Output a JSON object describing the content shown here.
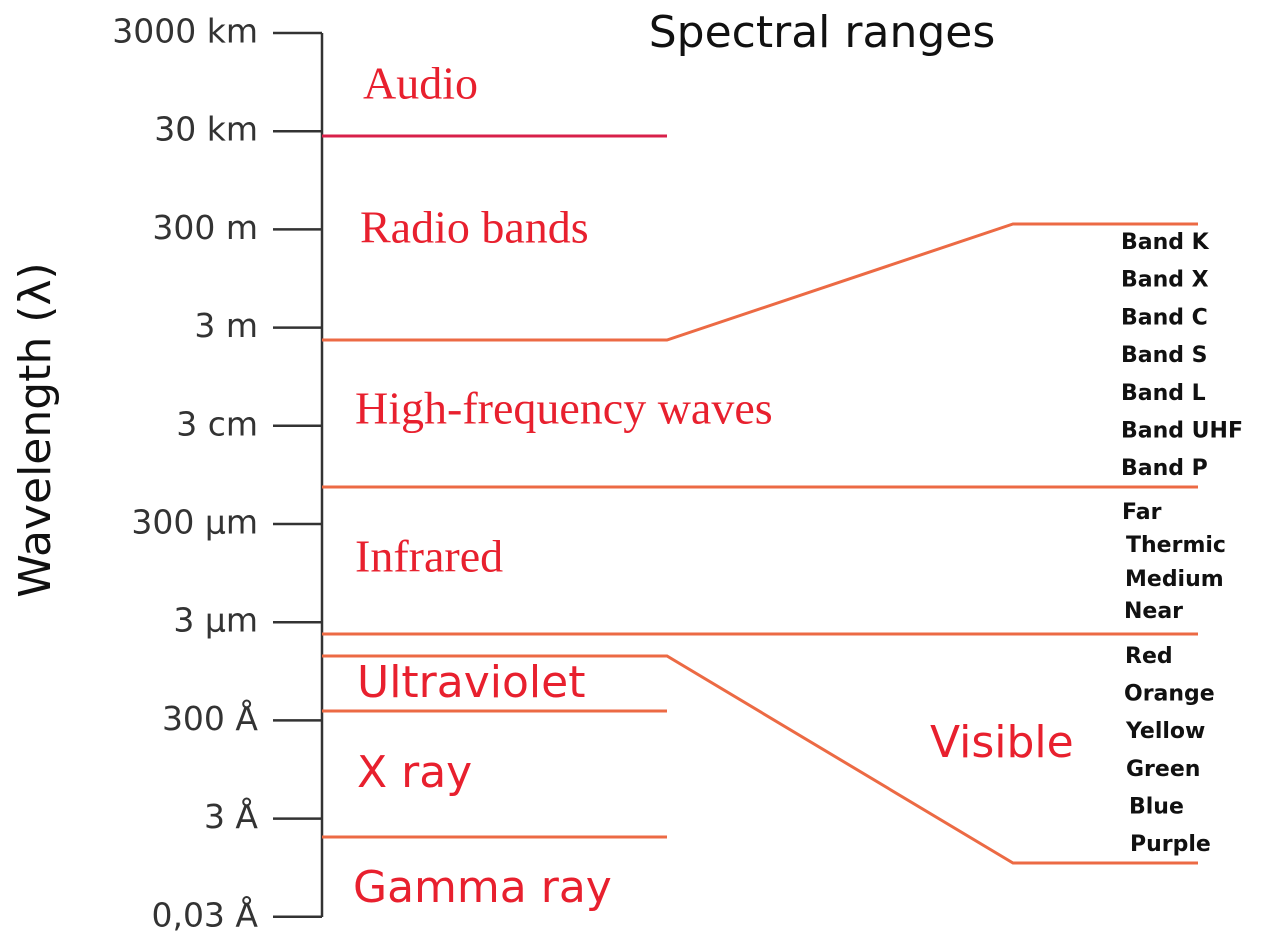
{
  "title": "Spectral ranges",
  "axis_label": "Wavelength (λ)",
  "ticks": [
    "3000 km",
    "30 km",
    "300 m",
    "3 m",
    "3 cm",
    "300 µm",
    "3 µm",
    "300 Å",
    "3 Å",
    "0,03 Å"
  ],
  "regions": [
    "Audio",
    "Radio bands",
    "High-frequency waves",
    "Infrared",
    "Ultraviolet",
    "X ray",
    "Gamma ray"
  ],
  "radio_bands": [
    "Band K",
    "Band X",
    "Band C",
    "Band S",
    "Band L",
    "Band UHF",
    "Band P"
  ],
  "infrared_ranges": [
    "Far",
    "Thermic",
    "Medium",
    "Near"
  ],
  "visible": {
    "label": "Visible",
    "colors": [
      "Red",
      "Orange",
      "Yellow",
      "Green",
      "Blue",
      "Purple"
    ]
  }
}
